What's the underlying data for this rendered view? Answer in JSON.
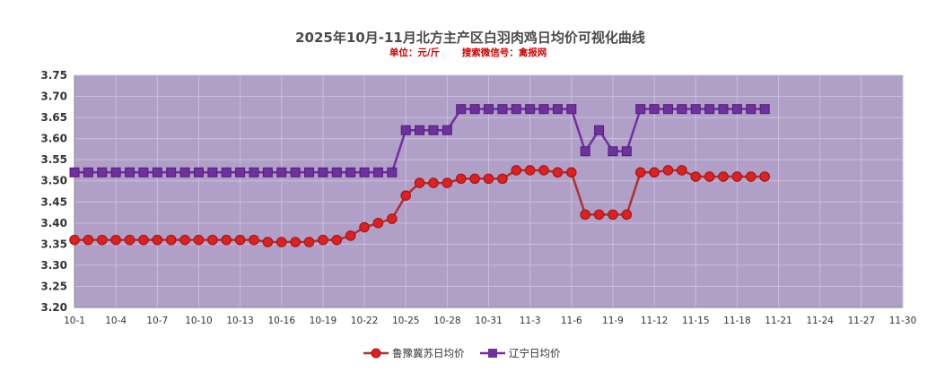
{
  "chart_data": {
    "type": "line",
    "title": "2025年10月-11月北方主产区白羽肉鸡日均价可视化曲线",
    "subtitle_unit": "单位：元/斤",
    "subtitle_search": "搜索微信号：禽报网",
    "xlabel": "",
    "ylabel": "",
    "ylim": [
      3.2,
      3.75
    ],
    "yticks": [
      "3.20",
      "3.25",
      "3.30",
      "3.35",
      "3.40",
      "3.45",
      "3.50",
      "3.55",
      "3.60",
      "3.65",
      "3.70",
      "3.75"
    ],
    "xticks": [
      "10-1",
      "10-4",
      "10-7",
      "10-10",
      "10-13",
      "10-16",
      "10-19",
      "10-22",
      "10-25",
      "10-28",
      "10-31",
      "11-3",
      "11-6",
      "11-9",
      "11-12",
      "11-15",
      "11-18",
      "11-21",
      "11-24",
      "11-27",
      "11-30"
    ],
    "grid": true,
    "legend": "bottom",
    "plot_bg": "#b0a0c8",
    "series": [
      {
        "name": "鲁豫冀苏日均价",
        "color": "#b03030",
        "marker": "circle",
        "marker_color": "#e02020",
        "x": [
          "10-1",
          "10-2",
          "10-3",
          "10-4",
          "10-5",
          "10-6",
          "10-7",
          "10-8",
          "10-9",
          "10-10",
          "10-11",
          "10-12",
          "10-13",
          "10-14",
          "10-15",
          "10-16",
          "10-17",
          "10-18",
          "10-19",
          "10-20",
          "10-21",
          "10-22",
          "10-23",
          "10-24",
          "10-25",
          "10-26",
          "10-27",
          "10-28",
          "10-29",
          "10-30",
          "10-31",
          "11-1",
          "11-2",
          "11-3",
          "11-4",
          "11-5",
          "11-6",
          "11-7",
          "11-8",
          "11-9",
          "11-10",
          "11-11",
          "11-12",
          "11-13",
          "11-14",
          "11-15",
          "11-16",
          "11-17",
          "11-18",
          "11-19",
          "11-20"
        ],
        "values": [
          3.36,
          3.36,
          3.36,
          3.36,
          3.36,
          3.36,
          3.36,
          3.36,
          3.36,
          3.36,
          3.36,
          3.36,
          3.36,
          3.36,
          3.355,
          3.355,
          3.355,
          3.355,
          3.36,
          3.36,
          3.37,
          3.39,
          3.4,
          3.41,
          3.465,
          3.495,
          3.495,
          3.495,
          3.505,
          3.505,
          3.505,
          3.505,
          3.525,
          3.525,
          3.525,
          3.52,
          3.52,
          3.42,
          3.42,
          3.42,
          3.42,
          3.52,
          3.52,
          3.525,
          3.525,
          3.51,
          3.51,
          3.51,
          3.51,
          3.51,
          3.51
        ]
      },
      {
        "name": "辽宁日均价",
        "color": "#7030a0",
        "marker": "square",
        "marker_color": "#7030a0",
        "x": [
          "10-1",
          "10-2",
          "10-3",
          "10-4",
          "10-5",
          "10-6",
          "10-7",
          "10-8",
          "10-9",
          "10-10",
          "10-11",
          "10-12",
          "10-13",
          "10-14",
          "10-15",
          "10-16",
          "10-17",
          "10-18",
          "10-19",
          "10-20",
          "10-21",
          "10-22",
          "10-23",
          "10-24",
          "10-25",
          "10-26",
          "10-27",
          "10-28",
          "10-29",
          "10-30",
          "10-31",
          "11-1",
          "11-2",
          "11-3",
          "11-4",
          "11-5",
          "11-6",
          "11-7",
          "11-8",
          "11-9",
          "11-10",
          "11-11",
          "11-12",
          "11-13",
          "11-14",
          "11-15",
          "11-16",
          "11-17",
          "11-18",
          "11-19",
          "11-20"
        ],
        "values": [
          3.52,
          3.52,
          3.52,
          3.52,
          3.52,
          3.52,
          3.52,
          3.52,
          3.52,
          3.52,
          3.52,
          3.52,
          3.52,
          3.52,
          3.52,
          3.52,
          3.52,
          3.52,
          3.52,
          3.52,
          3.52,
          3.52,
          3.52,
          3.52,
          3.62,
          3.62,
          3.62,
          3.62,
          3.67,
          3.67,
          3.67,
          3.67,
          3.67,
          3.67,
          3.67,
          3.67,
          3.67,
          3.57,
          3.62,
          3.57,
          3.57,
          3.67,
          3.67,
          3.67,
          3.67,
          3.67,
          3.67,
          3.67,
          3.67,
          3.67,
          3.67
        ]
      }
    ]
  }
}
